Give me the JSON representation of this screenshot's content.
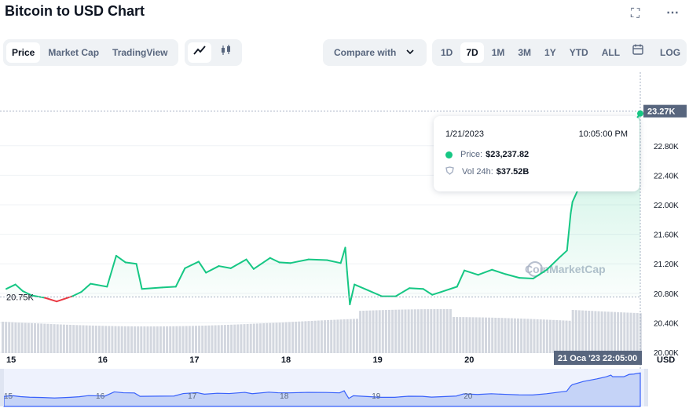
{
  "header": {
    "title": "Bitcoin to USD Chart"
  },
  "tabs": [
    {
      "label": "Price",
      "active": true
    },
    {
      "label": "Market Cap",
      "active": false
    },
    {
      "label": "TradingView",
      "active": false
    }
  ],
  "chart_type_icons": [
    "line-chart-icon",
    "candlestick-icon"
  ],
  "compare": {
    "label": "Compare with"
  },
  "ranges": [
    {
      "label": "1D",
      "active": false
    },
    {
      "label": "7D",
      "active": true
    },
    {
      "label": "1M",
      "active": false
    },
    {
      "label": "3M",
      "active": false
    },
    {
      "label": "1Y",
      "active": false
    },
    {
      "label": "YTD",
      "active": false
    },
    {
      "label": "ALL",
      "active": false
    }
  ],
  "log_label": "LOG",
  "tooltip": {
    "date": "1/21/2023",
    "time": "10:05:00 PM",
    "price_label": "Price:",
    "price_value": "$23,237.82",
    "vol_label": "Vol 24h:",
    "vol_value": "$37.52B"
  },
  "watermark": "CoinMarketCap",
  "colors": {
    "up": "#16c784",
    "down": "#ea3943",
    "accent": "#3861fb",
    "text": "#0d1421"
  },
  "chart_data": {
    "type": "line",
    "ylabel_unit": "USD",
    "y_ticks": [
      "22.80K",
      "22.40K",
      "22.00K",
      "21.60K",
      "21.20K",
      "20.80K",
      "20.40K",
      "20.00K"
    ],
    "y_tick_values": [
      22800,
      22400,
      22000,
      21600,
      21200,
      20800,
      20400,
      20000
    ],
    "ylim": [
      19990,
      23500
    ],
    "x_ticks": [
      "15",
      "16",
      "17",
      "18",
      "19",
      "20"
    ],
    "x_tick_values": [
      15,
      16,
      17,
      18,
      19,
      20
    ],
    "xlim": [
      15,
      21.92
    ],
    "current_price_label": "23.27K",
    "current_price": 23270,
    "start_price_label": "20.75K",
    "start_price": 20750,
    "crosshair_label": "21 Oca '23  22:05:00",
    "crosshair_x": 21.92,
    "price_series": [
      {
        "x": 15.0,
        "y": 20860
      },
      {
        "x": 15.1,
        "y": 20920
      },
      {
        "x": 15.18,
        "y": 20830
      },
      {
        "x": 15.28,
        "y": 20770
      },
      {
        "x": 15.42,
        "y": 20740
      },
      {
        "x": 15.55,
        "y": 20690
      },
      {
        "x": 15.72,
        "y": 20760
      },
      {
        "x": 15.82,
        "y": 20820
      },
      {
        "x": 15.92,
        "y": 20930
      },
      {
        "x": 16.1,
        "y": 20890
      },
      {
        "x": 16.2,
        "y": 21310
      },
      {
        "x": 16.3,
        "y": 21220
      },
      {
        "x": 16.42,
        "y": 21200
      },
      {
        "x": 16.48,
        "y": 20860
      },
      {
        "x": 16.7,
        "y": 20880
      },
      {
        "x": 16.85,
        "y": 20890
      },
      {
        "x": 16.95,
        "y": 21140
      },
      {
        "x": 17.1,
        "y": 21230
      },
      {
        "x": 17.18,
        "y": 21080
      },
      {
        "x": 17.32,
        "y": 21170
      },
      {
        "x": 17.45,
        "y": 21140
      },
      {
        "x": 17.62,
        "y": 21260
      },
      {
        "x": 17.7,
        "y": 21130
      },
      {
        "x": 17.88,
        "y": 21280
      },
      {
        "x": 17.98,
        "y": 21220
      },
      {
        "x": 18.1,
        "y": 21210
      },
      {
        "x": 18.3,
        "y": 21260
      },
      {
        "x": 18.5,
        "y": 21250
      },
      {
        "x": 18.65,
        "y": 21210
      },
      {
        "x": 18.7,
        "y": 21420
      },
      {
        "x": 18.72,
        "y": 21090
      },
      {
        "x": 18.75,
        "y": 20650
      },
      {
        "x": 18.8,
        "y": 20920
      },
      {
        "x": 18.95,
        "y": 20840
      },
      {
        "x": 19.1,
        "y": 20760
      },
      {
        "x": 19.25,
        "y": 20760
      },
      {
        "x": 19.4,
        "y": 20870
      },
      {
        "x": 19.55,
        "y": 20860
      },
      {
        "x": 19.65,
        "y": 20780
      },
      {
        "x": 19.75,
        "y": 20820
      },
      {
        "x": 19.92,
        "y": 20890
      },
      {
        "x": 20.0,
        "y": 21110
      },
      {
        "x": 20.15,
        "y": 21050
      },
      {
        "x": 20.3,
        "y": 21120
      },
      {
        "x": 20.45,
        "y": 21060
      },
      {
        "x": 20.6,
        "y": 21010
      },
      {
        "x": 20.75,
        "y": 21000
      },
      {
        "x": 20.9,
        "y": 21120
      },
      {
        "x": 21.05,
        "y": 21300
      },
      {
        "x": 21.12,
        "y": 21380
      },
      {
        "x": 21.16,
        "y": 21880
      },
      {
        "x": 21.18,
        "y": 22040
      },
      {
        "x": 21.3,
        "y": 22370
      },
      {
        "x": 21.45,
        "y": 22640
      },
      {
        "x": 21.55,
        "y": 22850
      },
      {
        "x": 21.6,
        "y": 23020
      },
      {
        "x": 21.62,
        "y": 22850
      },
      {
        "x": 21.74,
        "y": 22850
      },
      {
        "x": 21.8,
        "y": 23090
      },
      {
        "x": 21.85,
        "y": 23120
      },
      {
        "x": 21.92,
        "y": 23237.82
      }
    ]
  }
}
